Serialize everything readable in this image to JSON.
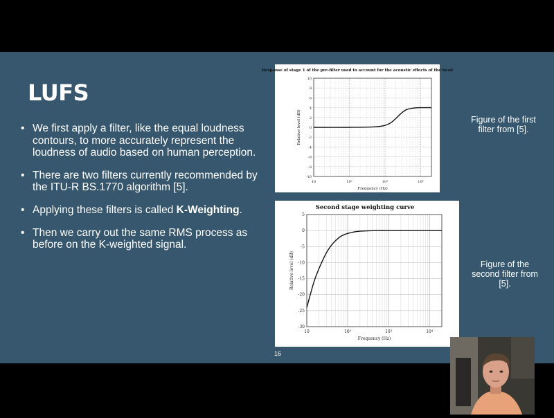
{
  "slide": {
    "title": "LUFS",
    "bullets": [
      {
        "text": "We first apply a filter, like the equal loudness contours, to more accurately represent the loudness of audio based on human perception."
      },
      {
        "text": "There are two filters currently recommended by the ITU-R BS.1770 algorithm [5]."
      },
      {
        "prefix": "Applying these filters is called ",
        "bold": "K-Weighting",
        "suffix": "."
      },
      {
        "text": "Then we carry out the same RMS process as before on the K-weighted signal."
      }
    ],
    "caption1": "Figure of the first filter from [5].",
    "caption2": "Figure of the second filter from [5].",
    "page_number": "16"
  },
  "chart_data": [
    {
      "type": "line",
      "title": "Response of stage 1 of the pre-filter used to account for the acoustic effects of the head",
      "xlabel": "Frequency (Hz)",
      "ylabel": "Relative level (dB)",
      "xscale": "log",
      "xlim": [
        10,
        20000
      ],
      "ylim": [
        -10,
        10
      ],
      "xticks": [
        "10",
        "10²",
        "10³",
        "10⁴"
      ],
      "yticks": [
        "-10",
        "-8",
        "-6",
        "-4",
        "-2",
        "0",
        "2",
        "4",
        "6",
        "8",
        "10"
      ],
      "x": [
        10,
        100,
        500,
        1000,
        1500,
        2000,
        3000,
        4000,
        6000,
        10000,
        20000
      ],
      "y": [
        0,
        0,
        0.1,
        0.4,
        1.0,
        1.8,
        3.0,
        3.6,
        3.9,
        4.0,
        4.0
      ]
    },
    {
      "type": "line",
      "title": "Second stage weighting curve",
      "xlabel": "Frequency (Hz)",
      "ylabel": "Relative level (dB)",
      "xscale": "log",
      "xlim": [
        10,
        20000
      ],
      "ylim": [
        -30,
        5
      ],
      "xticks": [
        "10",
        "10²",
        "10³",
        "10⁴"
      ],
      "yticks": [
        "-30",
        "-25",
        "-20",
        "-15",
        "-10",
        "-5",
        "0",
        "5"
      ],
      "x": [
        10,
        15,
        20,
        30,
        40,
        50,
        70,
        100,
        150,
        200,
        300,
        500,
        1000,
        20000
      ],
      "y": [
        -24,
        -16,
        -11.8,
        -7,
        -4.6,
        -3.2,
        -1.7,
        -0.9,
        -0.4,
        -0.2,
        -0.1,
        0,
        0,
        0
      ]
    }
  ]
}
